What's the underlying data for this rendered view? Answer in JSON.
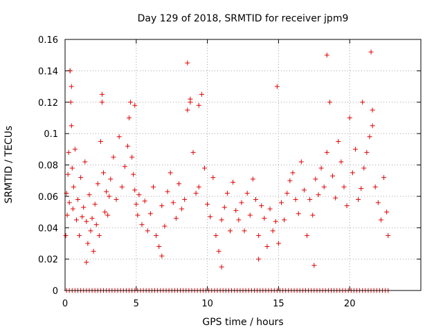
{
  "chart_data": {
    "type": "scatter",
    "title": "Day 129 of 2018, SRMTID for receiver jpm9",
    "xlabel": "GPS time / hours",
    "ylabel": "SRMTID / TECUs",
    "xlim": [
      0,
      25
    ],
    "ylim": [
      0,
      0.16
    ],
    "x_ticks": [
      "0",
      "5",
      "10",
      "15",
      "20"
    ],
    "x_tick_values": [
      0,
      5,
      10,
      15,
      20
    ],
    "y_ticks": [
      "0",
      "0.02",
      "0.04",
      "0.06",
      "0.08",
      "0.1",
      "0.12",
      "0.14",
      "0.16"
    ],
    "y_tick_values": [
      0,
      0.02,
      0.04,
      0.06,
      0.08,
      0.1,
      0.12,
      0.14,
      0.16
    ],
    "grid": true,
    "marker": "+",
    "color": "#e00000",
    "series": [
      {
        "name": "jpm9",
        "x": [
          0.05,
          0.1,
          0.15,
          0.2,
          0.25,
          0.3,
          0.35,
          0.4,
          0.45,
          0.5,
          0.55,
          0.6,
          0.7,
          0.8,
          0.9,
          1.0,
          1.1,
          1.2,
          1.3,
          1.4,
          1.5,
          1.6,
          1.7,
          1.8,
          1.9,
          2.0,
          2.1,
          2.2,
          2.3,
          2.4,
          2.5,
          2.6,
          2.7,
          2.8,
          2.9,
          3.0,
          3.2,
          3.4,
          3.6,
          3.8,
          4.0,
          4.2,
          4.4,
          4.5,
          4.6,
          4.7,
          4.8,
          4.9,
          5.0,
          5.1,
          5.2,
          5.4,
          5.6,
          5.8,
          6.0,
          6.2,
          6.4,
          6.6,
          6.8,
          7.0,
          7.2,
          7.4,
          7.6,
          7.8,
          8.0,
          8.2,
          8.4,
          8.6,
          8.8,
          9.0,
          9.2,
          9.4,
          9.6,
          9.8,
          10.0,
          10.2,
          10.4,
          10.6,
          10.8,
          11.0,
          11.2,
          11.4,
          11.6,
          11.8,
          12.0,
          12.2,
          12.4,
          12.6,
          12.8,
          13.0,
          13.2,
          13.4,
          13.6,
          13.8,
          14.0,
          14.2,
          14.4,
          14.6,
          14.8,
          15.0,
          15.2,
          15.4,
          15.6,
          15.8,
          16.0,
          16.2,
          16.4,
          16.6,
          16.8,
          17.0,
          17.2,
          17.4,
          17.6,
          17.8,
          18.0,
          18.2,
          18.4,
          18.6,
          18.8,
          19.0,
          19.2,
          19.4,
          19.6,
          19.8,
          20.0,
          20.2,
          20.4,
          20.6,
          20.8,
          21.0,
          21.2,
          21.4,
          21.6,
          21.8,
          22.0,
          22.2,
          22.4,
          22.6,
          22.7,
          0.35,
          0.45,
          2.6,
          4.9,
          8.6,
          8.8,
          9.4,
          14.9,
          18.4,
          20.9,
          21.5,
          21.6,
          3.1,
          1.5,
          6.8,
          11.0,
          13.6,
          17.5
        ],
        "y": [
          0.035,
          0.062,
          0.048,
          0.074,
          0.088,
          0.056,
          0.14,
          0.12,
          0.105,
          0.078,
          0.052,
          0.066,
          0.09,
          0.045,
          0.058,
          0.035,
          0.072,
          0.047,
          0.053,
          0.082,
          0.044,
          0.03,
          0.061,
          0.038,
          0.046,
          0.025,
          0.055,
          0.042,
          0.068,
          0.035,
          0.095,
          0.12,
          0.075,
          0.05,
          0.063,
          0.048,
          0.071,
          0.085,
          0.058,
          0.098,
          0.066,
          0.079,
          0.092,
          0.11,
          0.12,
          0.085,
          0.074,
          0.064,
          0.055,
          0.048,
          0.061,
          0.042,
          0.057,
          0.038,
          0.049,
          0.066,
          0.035,
          0.028,
          0.054,
          0.041,
          0.063,
          0.075,
          0.056,
          0.046,
          0.068,
          0.052,
          0.058,
          0.145,
          0.12,
          0.088,
          0.062,
          0.066,
          0.125,
          0.078,
          0.055,
          0.047,
          0.072,
          0.035,
          0.025,
          0.045,
          0.053,
          0.062,
          0.038,
          0.069,
          0.051,
          0.045,
          0.056,
          0.038,
          0.062,
          0.048,
          0.071,
          0.058,
          0.035,
          0.054,
          0.046,
          0.028,
          0.052,
          0.038,
          0.044,
          0.03,
          0.056,
          0.045,
          0.062,
          0.07,
          0.075,
          0.058,
          0.049,
          0.082,
          0.064,
          0.035,
          0.058,
          0.048,
          0.071,
          0.061,
          0.078,
          0.066,
          0.088,
          0.12,
          0.073,
          0.059,
          0.095,
          0.082,
          0.066,
          0.054,
          0.11,
          0.075,
          0.09,
          0.058,
          0.065,
          0.078,
          0.088,
          0.098,
          0.115,
          0.066,
          0.056,
          0.045,
          0.072,
          0.05,
          0.035,
          0.14,
          0.13,
          0.125,
          0.118,
          0.115,
          0.122,
          0.118,
          0.13,
          0.15,
          0.12,
          0.152,
          0.105,
          0.06,
          0.018,
          0.022,
          0.015,
          0.02,
          0.016
        ]
      }
    ],
    "zero_strip": {
      "name": "jpm9-zero",
      "x": [
        0.1,
        0.3,
        0.5,
        0.7,
        0.9,
        1.1,
        1.3,
        1.5,
        1.7,
        1.9,
        2.1,
        2.3,
        2.5,
        2.7,
        2.9,
        3.1,
        3.3,
        3.5,
        3.7,
        3.9,
        4.1,
        4.3,
        4.5,
        4.7,
        4.9,
        5.1,
        5.3,
        5.5,
        5.7,
        5.9,
        6.1,
        6.3,
        6.5,
        6.7,
        6.9,
        7.1,
        7.3,
        7.5,
        7.7,
        7.9,
        8.1,
        8.3,
        8.5,
        8.7,
        8.9,
        9.1,
        9.3,
        9.5,
        9.7,
        9.9,
        10.1,
        10.3,
        10.5,
        10.7,
        10.9,
        11.1,
        11.3,
        11.5,
        11.7,
        11.9,
        12.1,
        12.3,
        12.5,
        12.7,
        12.9,
        13.1,
        13.3,
        13.5,
        13.7,
        13.9,
        14.1,
        14.3,
        14.5,
        14.7,
        14.9,
        15.1,
        15.3,
        15.5,
        15.7,
        15.9,
        16.1,
        16.3,
        16.5,
        16.7,
        16.9,
        17.1,
        17.3,
        17.5,
        17.7,
        17.9,
        18.1,
        18.3,
        18.5,
        18.7,
        18.9,
        19.1,
        19.3,
        19.5,
        19.7,
        19.9,
        20.1,
        20.3,
        20.5,
        20.7,
        20.9,
        21.1,
        21.3,
        21.5,
        21.7,
        21.9,
        22.1,
        22.3,
        22.5,
        22.7
      ],
      "y": 0
    }
  }
}
